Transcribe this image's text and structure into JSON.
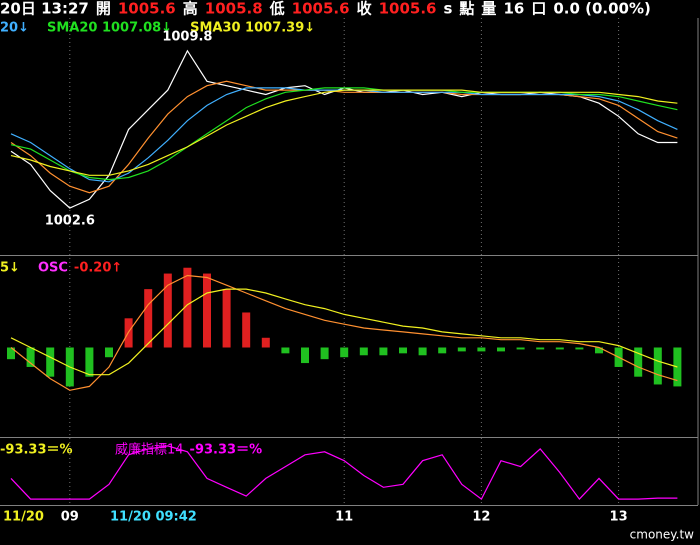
{
  "header": [
    {
      "text": "20日 13:27",
      "color": "#ffffff"
    },
    {
      "text": "開",
      "color": "#ffffff"
    },
    {
      "text": "1005.6",
      "color": "#ff2020"
    },
    {
      "text": "高",
      "color": "#ffffff"
    },
    {
      "text": "1005.8",
      "color": "#ff2020"
    },
    {
      "text": "低",
      "color": "#ffffff"
    },
    {
      "text": "1005.6",
      "color": "#ff2020"
    },
    {
      "text": "收",
      "color": "#ffffff"
    },
    {
      "text": "1005.6",
      "color": "#ff2020"
    },
    {
      "text": "s",
      "color": "#ffffff"
    },
    {
      "text": "點",
      "color": "#ffffff"
    },
    {
      "text": "量",
      "color": "#ffffff"
    },
    {
      "text": "16",
      "color": "#ffffff"
    },
    {
      "text": "口",
      "color": "#ffffff"
    },
    {
      "text": "0.0 (0.00%)",
      "color": "#ffffff"
    }
  ],
  "watermark": "cmoney.tw",
  "chart_data": [
    {
      "type": "line",
      "ylim": [
        1000.45,
        1011.3
      ],
      "series": [
        {
          "color": "#ffffff",
          "values": [
            1005.2,
            1004.6,
            1003.4,
            1002.6,
            1003.0,
            1004.1,
            1006.2,
            1007.1,
            1008.0,
            1009.8,
            1008.4,
            1008.2,
            1008.0,
            1007.8,
            1008.1,
            1008.2,
            1007.8,
            1008.1,
            1007.9,
            1007.9,
            1008.0,
            1007.8,
            1007.9,
            1007.7,
            1007.9,
            1007.8,
            1007.8,
            1007.9,
            1007.8,
            1007.7,
            1007.4,
            1006.8,
            1006.0,
            1005.6,
            1005.6
          ]
        },
        {
          "color": "#ff9030",
          "values": [
            1005.6,
            1005.0,
            1004.2,
            1003.6,
            1003.3,
            1003.6,
            1004.6,
            1005.8,
            1006.9,
            1007.7,
            1008.2,
            1008.4,
            1008.2,
            1008.0,
            1008.0,
            1008.0,
            1008.0,
            1007.9,
            1007.9,
            1007.9,
            1007.9,
            1007.9,
            1007.9,
            1007.8,
            1007.8,
            1007.8,
            1007.8,
            1007.8,
            1007.8,
            1007.7,
            1007.6,
            1007.3,
            1006.7,
            1006.1,
            1005.8
          ]
        },
        {
          "name": "20↓",
          "color": "#40b0ff",
          "values": [
            1006.0,
            1005.6,
            1005.0,
            1004.4,
            1003.9,
            1003.8,
            1004.2,
            1004.9,
            1005.7,
            1006.6,
            1007.3,
            1007.8,
            1008.1,
            1008.1,
            1008.1,
            1008.0,
            1008.0,
            1008.0,
            1008.0,
            1007.9,
            1007.9,
            1007.9,
            1007.9,
            1007.9,
            1007.8,
            1007.8,
            1007.8,
            1007.8,
            1007.8,
            1007.8,
            1007.7,
            1007.5,
            1007.1,
            1006.6,
            1006.2
          ]
        },
        {
          "name": "SMA20 1007.08↓",
          "color": "#20e020",
          "values": [
            1005.5,
            1005.3,
            1004.8,
            1004.3,
            1004.0,
            1003.9,
            1004.0,
            1004.3,
            1004.8,
            1005.4,
            1006.0,
            1006.6,
            1007.2,
            1007.6,
            1007.9,
            1008.0,
            1008.1,
            1008.1,
            1008.1,
            1008.0,
            1008.0,
            1008.0,
            1008.0,
            1007.9,
            1007.9,
            1007.9,
            1007.9,
            1007.9,
            1007.9,
            1007.8,
            1007.8,
            1007.7,
            1007.5,
            1007.3,
            1007.1
          ]
        },
        {
          "name": "SMA30 1007.39↓",
          "color": "#f0f020",
          "values": [
            1005.0,
            1004.8,
            1004.5,
            1004.3,
            1004.1,
            1004.1,
            1004.3,
            1004.6,
            1005.0,
            1005.4,
            1005.9,
            1006.4,
            1006.8,
            1007.2,
            1007.5,
            1007.7,
            1007.9,
            1008.0,
            1008.0,
            1008.0,
            1008.0,
            1008.0,
            1008.0,
            1008.0,
            1007.9,
            1007.9,
            1007.9,
            1007.9,
            1007.9,
            1007.9,
            1007.9,
            1007.8,
            1007.7,
            1007.5,
            1007.4
          ]
        }
      ]
    },
    {
      "type": "combo",
      "ylim": [
        -0.46,
        0.46
      ],
      "series": [
        {
          "type": "line",
          "color": "#ff9030",
          "values": [
            0.0,
            -0.08,
            -0.16,
            -0.22,
            -0.2,
            -0.1,
            0.08,
            0.22,
            0.32,
            0.37,
            0.36,
            0.32,
            0.28,
            0.24,
            0.2,
            0.17,
            0.14,
            0.12,
            0.1,
            0.09,
            0.08,
            0.07,
            0.06,
            0.05,
            0.05,
            0.04,
            0.04,
            0.03,
            0.03,
            0.02,
            0.0,
            -0.05,
            -0.1,
            -0.14,
            -0.17
          ]
        },
        {
          "type": "line",
          "name": "5↓",
          "color": "#f0f020",
          "values": [
            0.05,
            0.0,
            -0.05,
            -0.1,
            -0.14,
            -0.14,
            -0.08,
            0.02,
            0.12,
            0.22,
            0.28,
            0.3,
            0.3,
            0.28,
            0.25,
            0.22,
            0.2,
            0.17,
            0.15,
            0.13,
            0.11,
            0.1,
            0.08,
            0.07,
            0.06,
            0.05,
            0.05,
            0.04,
            0.04,
            0.03,
            0.03,
            0.01,
            -0.03,
            -0.07,
            -0.1
          ]
        },
        {
          "type": "bar",
          "name": "OSC",
          "legend_value": "-0.20↑",
          "color": "#ff30ff",
          "color_up": "#e02020",
          "color_down": "#20c020",
          "values": [
            -0.06,
            -0.1,
            -0.15,
            -0.2,
            -0.15,
            -0.05,
            0.15,
            0.3,
            0.38,
            0.41,
            0.38,
            0.3,
            0.18,
            0.05,
            -0.03,
            -0.08,
            -0.06,
            -0.05,
            -0.04,
            -0.04,
            -0.03,
            -0.04,
            -0.03,
            -0.02,
            -0.02,
            -0.02,
            -0.01,
            -0.01,
            -0.01,
            -0.01,
            -0.03,
            -0.1,
            -0.15,
            -0.19,
            -0.2
          ]
        }
      ]
    },
    {
      "type": "line",
      "ylim": [
        -105,
        5
      ],
      "left_label": "-93.33＝%",
      "left_label_color": "#f0f020",
      "cursor_label": "11/20 09:42",
      "cursor_color": "#40e0ff",
      "categories": [
        "11/20",
        null,
        null,
        "09",
        null,
        null,
        null,
        null,
        null,
        null,
        null,
        null,
        null,
        null,
        null,
        null,
        null,
        "11",
        null,
        null,
        null,
        null,
        null,
        null,
        "12",
        null,
        null,
        null,
        null,
        null,
        null,
        "13",
        null,
        null,
        null
      ],
      "series": [
        {
          "name": "威廉指標14",
          "legend_value": "-93.33＝%",
          "color": "#ff00ff",
          "values": [
            -60,
            -95,
            -95,
            -95,
            -95,
            -70,
            -20,
            -10,
            -5,
            -15,
            -60,
            -75,
            -90,
            -60,
            -40,
            -20,
            -15,
            -30,
            -55,
            -75,
            -70,
            -30,
            -20,
            -70,
            -95,
            -30,
            -40,
            -10,
            -50,
            -95,
            -60,
            -95,
            -95,
            -93.33,
            -93.33
          ]
        }
      ]
    }
  ]
}
